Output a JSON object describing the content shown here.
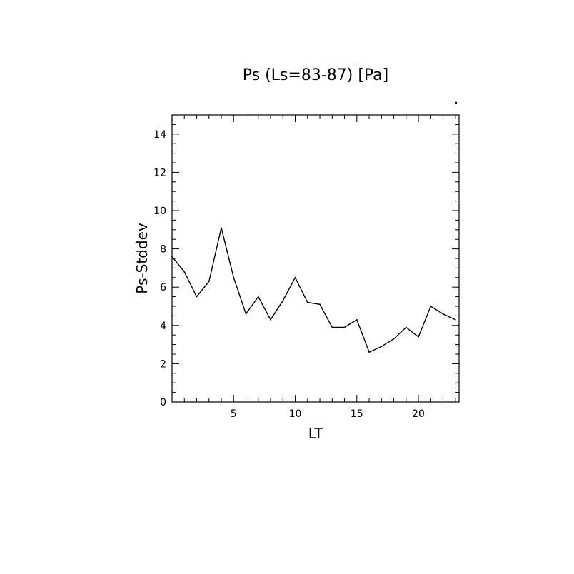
{
  "chart_data": {
    "type": "line",
    "title": "Ps (Ls=83-87) [Pa]",
    "xlabel": "LT",
    "ylabel": "Ps-Stddev",
    "xlim": [
      0,
      23.3
    ],
    "ylim": [
      0,
      15
    ],
    "xticks": [
      5,
      10,
      15,
      20
    ],
    "yticks": [
      0,
      2,
      4,
      6,
      8,
      10,
      12,
      14
    ],
    "grid": false,
    "series": [
      {
        "x": [
          0,
          1,
          2,
          3,
          4,
          5,
          6,
          7,
          8,
          9,
          10,
          11,
          12,
          13,
          14,
          15,
          16,
          17,
          18,
          19,
          20,
          21,
          22,
          23
        ],
        "values": [
          7.6,
          6.8,
          5.5,
          6.3,
          9.1,
          6.5,
          4.6,
          5.5,
          4.3,
          5.3,
          6.5,
          5.2,
          5.1,
          3.9,
          3.9,
          4.3,
          2.6,
          2.9,
          3.3,
          3.9,
          3.4,
          5.0,
          4.6,
          4.3
        ]
      }
    ]
  }
}
